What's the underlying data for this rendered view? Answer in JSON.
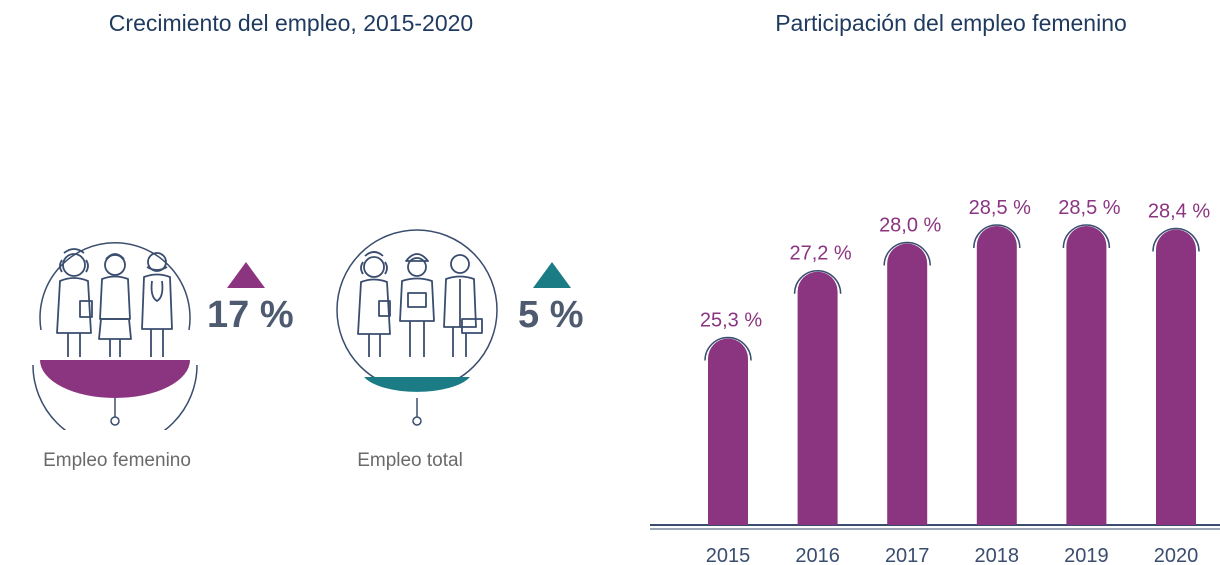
{
  "colors": {
    "title": "#1f3a5f",
    "female": "#8b3480",
    "total": "#1b7c86",
    "percent_text": "#4e5a6f",
    "caption": "#6a6a6a",
    "baseline": "#3a4d6e"
  },
  "left_panel": {
    "title": "Crecimiento del empleo, 2015-2020",
    "items": [
      {
        "caption": "Empleo femenino",
        "percent": "17 %",
        "trend": "up",
        "icon": "three-women-workers-icon"
      },
      {
        "caption": "Empleo total",
        "percent": "5 %",
        "trend": "up",
        "icon": "mixed-workers-icon"
      }
    ]
  },
  "chart_data": {
    "type": "bar",
    "title": "Participación del empleo femenino",
    "categories": [
      "2015",
      "2016",
      "2017",
      "2018",
      "2019",
      "2020"
    ],
    "values": [
      25.3,
      27.2,
      28.0,
      28.5,
      28.5,
      28.4
    ],
    "value_labels": [
      "25,3 %",
      "27,2 %",
      "28,0 %",
      "28,5 %",
      "28,5 %",
      "28,4 %"
    ],
    "unit": "%",
    "xlabel": "",
    "ylabel": "",
    "grid": false,
    "legend": "none"
  }
}
